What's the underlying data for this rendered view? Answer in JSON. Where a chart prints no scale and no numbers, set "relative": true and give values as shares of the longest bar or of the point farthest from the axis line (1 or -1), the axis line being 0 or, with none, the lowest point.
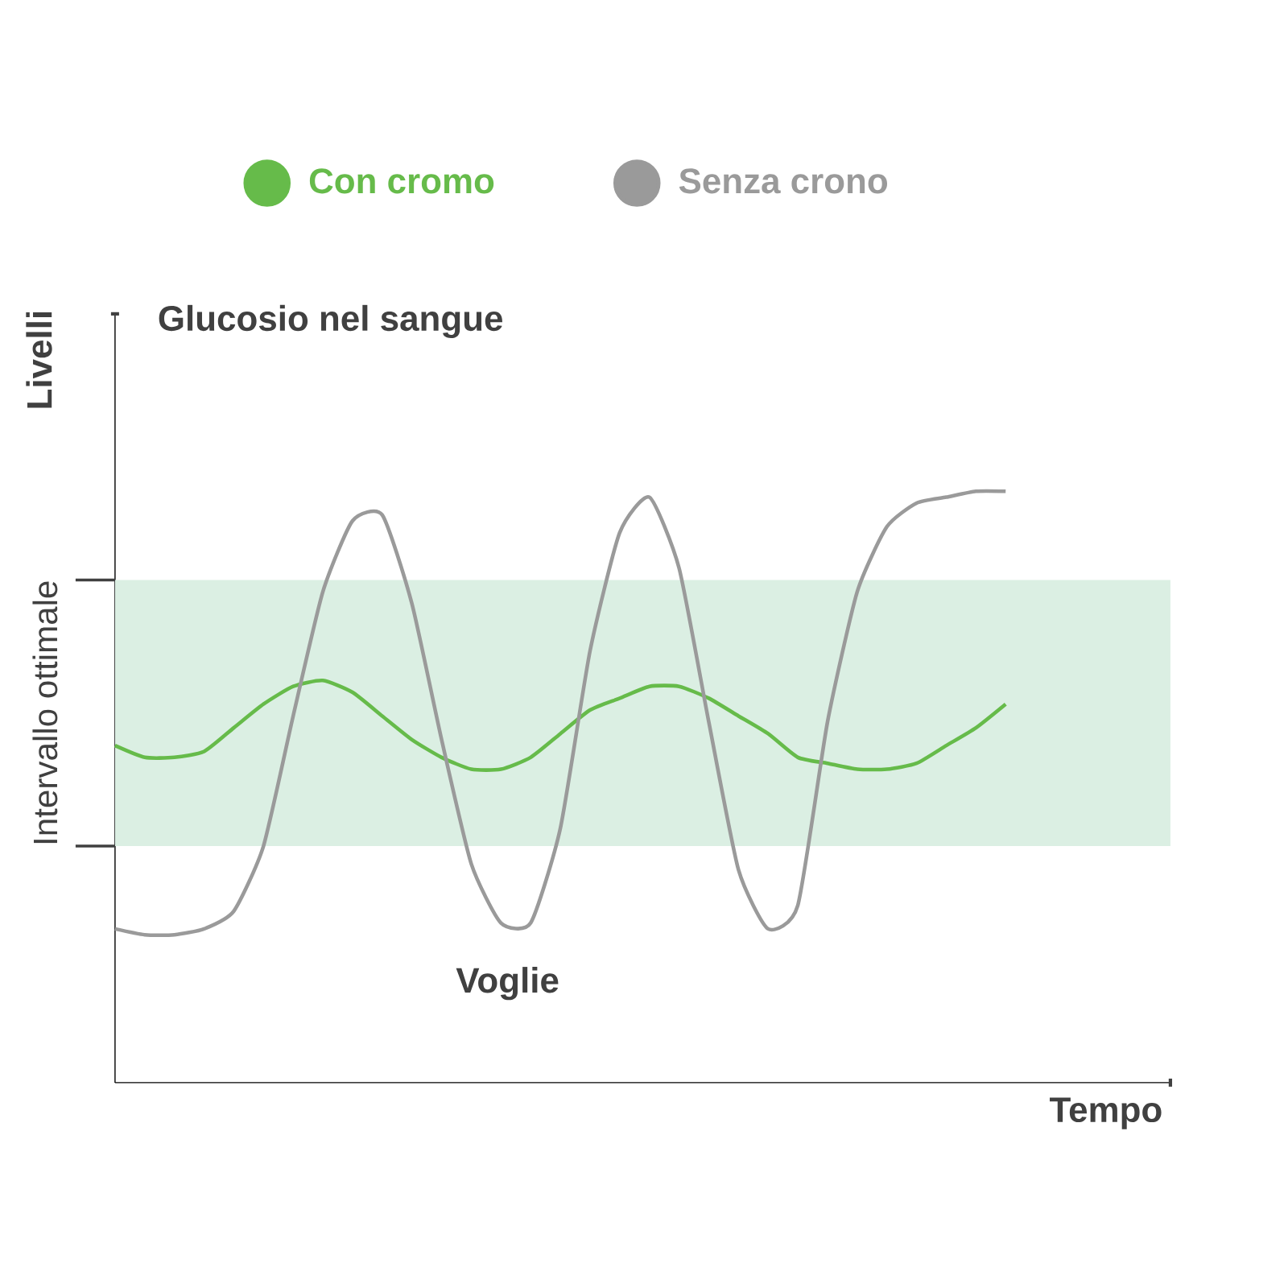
{
  "chart_data": {
    "type": "line",
    "relative": true,
    "title": "Glucosio nel sangue",
    "ylabel": "Livelli",
    "xlabel": "Tempo",
    "annotations": [
      "Voglie"
    ],
    "legend": "top",
    "categories": [
      null,
      null,
      null,
      null,
      null,
      null,
      null,
      null,
      null,
      null,
      null,
      null,
      null,
      null,
      null,
      null,
      null,
      null,
      null,
      null,
      null,
      null,
      null,
      null,
      null,
      null,
      null,
      null,
      null,
      null,
      null
    ],
    "series": [
      {
        "name": "Con cromo",
        "color": "#66bb4a",
        "values": [
          0.57,
          0.55,
          0.55,
          0.56,
          0.6,
          0.64,
          0.67,
          0.68,
          0.66,
          0.62,
          0.58,
          0.55,
          0.53,
          0.53,
          0.55,
          0.59,
          0.63,
          0.65,
          0.67,
          0.67,
          0.65,
          0.62,
          0.59,
          0.55,
          0.54,
          0.53,
          0.53,
          0.54,
          0.57,
          0.6,
          0.64
        ]
      },
      {
        "name": "Senza crono",
        "color": "#9a9a9a",
        "values": [
          0.26,
          0.25,
          0.25,
          0.26,
          0.29,
          0.4,
          0.62,
          0.83,
          0.95,
          0.96,
          0.81,
          0.58,
          0.37,
          0.27,
          0.27,
          0.43,
          0.73,
          0.93,
          0.99,
          0.87,
          0.61,
          0.36,
          0.26,
          0.3,
          0.61,
          0.83,
          0.94,
          0.98,
          0.99,
          1.0,
          1.0
        ]
      }
    ],
    "bands": [
      {
        "axis": "y",
        "from": 0.4,
        "to": 0.85,
        "label": "Intervallo ottimale",
        "color": "#dbefe3"
      }
    ]
  }
}
